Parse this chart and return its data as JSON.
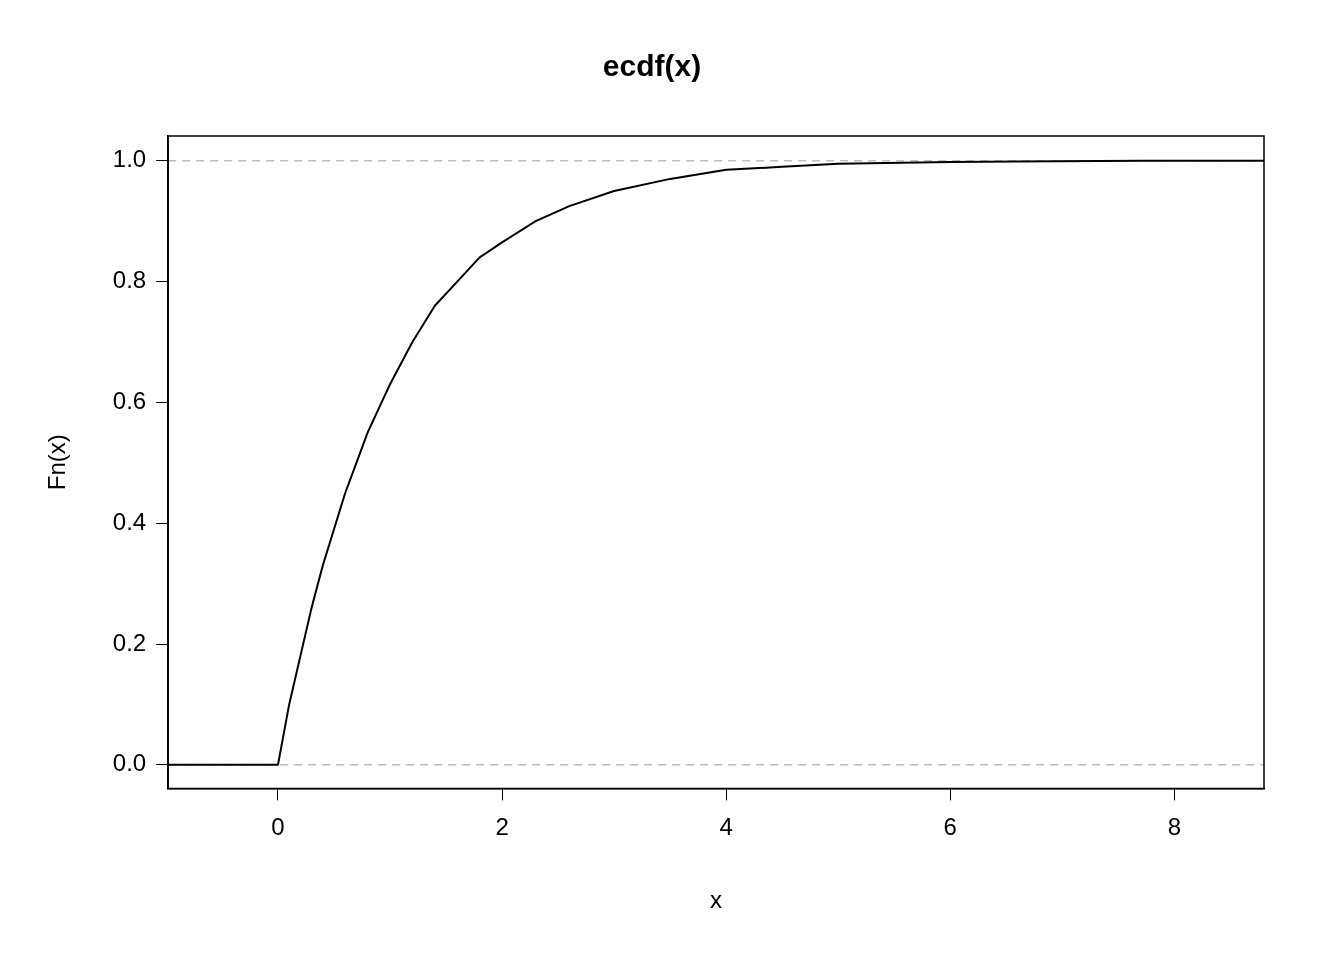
{
  "chart_data": {
    "type": "line",
    "title": "ecdf(x)",
    "xlabel": "x",
    "ylabel": "Fn(x)",
    "xlim": [
      -0.98,
      8.8
    ],
    "ylim": [
      -0.039,
      1.041
    ],
    "xticks": [
      0,
      2,
      4,
      6,
      8
    ],
    "yticks": [
      {
        "value": 0,
        "label": "0.0"
      },
      {
        "value": 0.2,
        "label": "0.2"
      },
      {
        "value": 0.4,
        "label": "0.4"
      },
      {
        "value": 0.6,
        "label": "0.6"
      },
      {
        "value": 0.8,
        "label": "0.8"
      },
      {
        "value": 1,
        "label": "1.0"
      }
    ],
    "grid": false,
    "legend": false,
    "marker": "none",
    "line_style": "solid",
    "ref_lines": [
      {
        "axis": "y",
        "value": 0,
        "color": "#bebebe",
        "line_style": "dashed"
      },
      {
        "axis": "y",
        "value": 1,
        "color": "#bebebe",
        "line_style": "dashed"
      }
    ],
    "series": [
      {
        "color": "#000000",
        "x": [
          -0.98,
          0,
          0.05,
          0.1,
          0.2,
          0.3,
          0.4,
          0.5,
          0.6,
          0.7,
          0.8,
          0.9,
          1.0,
          1.2,
          1.4,
          1.6,
          1.8,
          2.0,
          2.3,
          2.6,
          3.0,
          3.5,
          4.0,
          4.5,
          5.0,
          6.0,
          7.7,
          8.8
        ],
        "values": [
          0,
          0,
          0.05,
          0.1,
          0.18,
          0.26,
          0.33,
          0.39,
          0.45,
          0.5,
          0.55,
          0.59,
          0.63,
          0.7,
          0.76,
          0.8,
          0.84,
          0.865,
          0.9,
          0.925,
          0.95,
          0.97,
          0.985,
          0.99,
          0.995,
          0.998,
          1,
          1
        ]
      }
    ]
  }
}
